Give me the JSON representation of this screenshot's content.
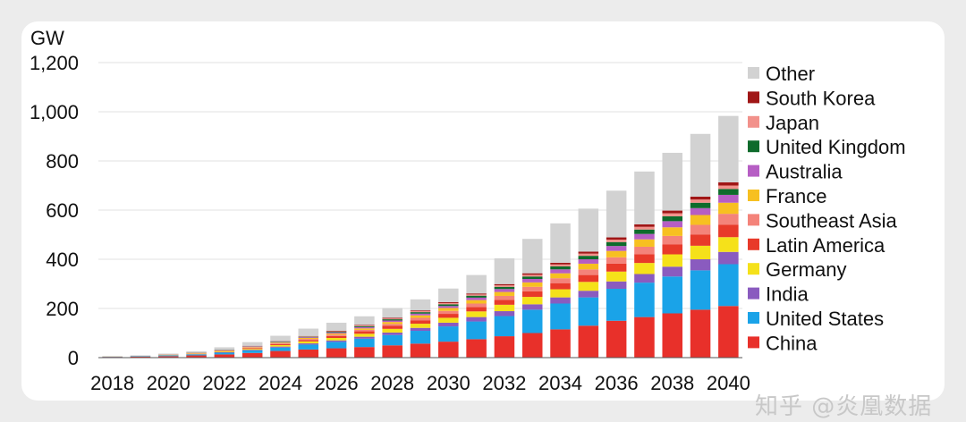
{
  "chart_data": {
    "type": "bar",
    "stacked": true,
    "unit": "GW",
    "categories": [
      "2018",
      "2019",
      "2020",
      "2021",
      "2022",
      "2023",
      "2024",
      "2025",
      "2026",
      "2027",
      "2028",
      "2029",
      "2030",
      "2031",
      "2032",
      "2033",
      "2034",
      "2035",
      "2036",
      "2037",
      "2038",
      "2039",
      "2040"
    ],
    "x_tick_labels": [
      "2018",
      "2020",
      "2022",
      "2024",
      "2026",
      "2028",
      "2030",
      "2032",
      "2034",
      "2036",
      "2038",
      "2040"
    ],
    "y_ticks": [
      "0",
      "200",
      "400",
      "600",
      "800",
      "1,000",
      "1,200"
    ],
    "ylim": [
      0,
      1200
    ],
    "legend_position": "right",
    "series": [
      {
        "name": "China",
        "color": "#e8302a",
        "values": [
          3,
          4,
          6,
          9,
          13,
          19,
          27,
          33,
          38,
          43,
          50,
          57,
          65,
          75,
          87,
          100,
          115,
          130,
          150,
          165,
          180,
          195,
          210
        ]
      },
      {
        "name": "United States",
        "color": "#1aa3e8",
        "values": [
          1,
          2,
          3,
          4,
          7,
          10,
          14,
          20,
          26,
          34,
          42,
          52,
          62,
          72,
          82,
          95,
          105,
          115,
          130,
          140,
          150,
          160,
          170
        ]
      },
      {
        "name": "India",
        "color": "#8a5bbf",
        "values": [
          0.5,
          0.5,
          1,
          1,
          2,
          3,
          4,
          5,
          6,
          8,
          10,
          12,
          15,
          18,
          20,
          22,
          25,
          27,
          30,
          35,
          40,
          45,
          50
        ]
      },
      {
        "name": "Germany",
        "color": "#f5e11a",
        "values": [
          0.5,
          0.5,
          1,
          2,
          3,
          4,
          6,
          8,
          10,
          12,
          15,
          17,
          20,
          23,
          26,
          30,
          33,
          36,
          40,
          45,
          50,
          55,
          60
        ]
      },
      {
        "name": "Latin America",
        "color": "#e83a2a",
        "values": [
          0,
          0.5,
          0.5,
          1,
          2,
          3,
          4,
          6,
          8,
          10,
          12,
          14,
          16,
          18,
          20,
          23,
          25,
          28,
          32,
          36,
          40,
          45,
          50
        ]
      },
      {
        "name": "Southeast Asia",
        "color": "#f4837a",
        "values": [
          0,
          0,
          0.5,
          1,
          1,
          2,
          3,
          4,
          5,
          6,
          8,
          10,
          12,
          14,
          16,
          18,
          20,
          23,
          26,
          30,
          35,
          40,
          45
        ]
      },
      {
        "name": "France",
        "color": "#f7c021",
        "values": [
          0,
          0,
          0.5,
          1,
          1,
          2,
          3,
          4,
          5,
          6,
          8,
          10,
          12,
          14,
          16,
          18,
          20,
          23,
          26,
          30,
          35,
          40,
          45
        ]
      },
      {
        "name": "Australia",
        "color": "#b65ec4",
        "values": [
          0,
          0,
          0.5,
          0.5,
          1,
          2,
          2,
          3,
          4,
          5,
          6,
          7,
          8,
          10,
          12,
          14,
          16,
          18,
          20,
          22,
          25,
          28,
          32
        ]
      },
      {
        "name": "United Kingdom",
        "color": "#0e6b2c",
        "values": [
          0,
          0,
          0.5,
          0.5,
          1,
          1,
          2,
          2,
          3,
          4,
          5,
          6,
          7,
          8,
          9,
          10,
          12,
          14,
          16,
          18,
          20,
          22,
          24
        ]
      },
      {
        "name": "Japan",
        "color": "#f2918b",
        "values": [
          0,
          0,
          0,
          0.5,
          0.5,
          1,
          1,
          2,
          2,
          3,
          3,
          4,
          5,
          5,
          6,
          7,
          8,
          9,
          10,
          11,
          12,
          13,
          14
        ]
      },
      {
        "name": "South Korea",
        "color": "#a01616",
        "values": [
          0,
          0,
          0,
          0.5,
          0.5,
          1,
          1,
          1,
          2,
          2,
          3,
          3,
          4,
          4,
          5,
          6,
          7,
          8,
          9,
          10,
          11,
          12,
          13
        ]
      },
      {
        "name": "Other",
        "color": "#d2d2d2",
        "values": [
          1,
          2,
          3,
          5,
          10,
          15,
          22,
          30,
          33,
          35,
          40,
          45,
          55,
          75,
          105,
          140,
          160,
          175,
          190,
          215,
          235,
          255,
          270
        ]
      }
    ]
  },
  "watermark": "知乎 @炎凰数据"
}
